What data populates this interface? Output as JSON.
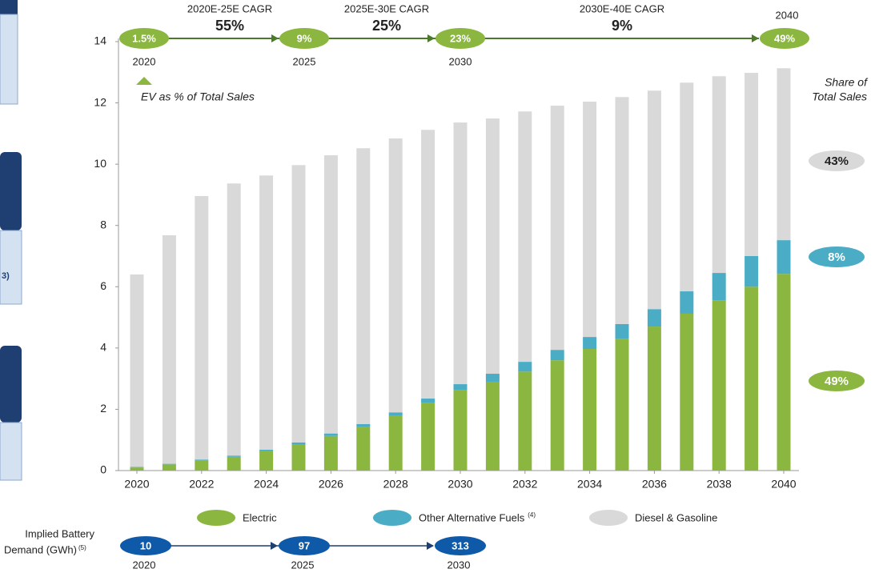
{
  "chart_data": {
    "type": "stacked_bar",
    "categories": [
      2020,
      null,
      2022,
      null,
      2024,
      null,
      2026,
      null,
      2028,
      null,
      2030,
      null,
      2032,
      null,
      2034,
      null,
      2036,
      null,
      2038,
      null,
      2040
    ],
    "series": [
      {
        "name": "Electric",
        "color": "#8bb741",
        "values": [
          0.1,
          0.2,
          0.33,
          0.45,
          0.63,
          0.85,
          1.13,
          1.42,
          1.78,
          2.2,
          2.62,
          2.9,
          3.23,
          3.6,
          3.97,
          4.3,
          4.7,
          5.12,
          5.56,
          6.0,
          6.42
        ]
      },
      {
        "name": "Other Alternative Fuels",
        "name_note": "(4)",
        "color": "#4bacc6",
        "values": [
          0.02,
          0.02,
          0.03,
          0.04,
          0.05,
          0.07,
          0.08,
          0.1,
          0.12,
          0.15,
          0.2,
          0.26,
          0.32,
          0.34,
          0.39,
          0.48,
          0.57,
          0.73,
          0.89,
          1.0,
          1.1
        ]
      },
      {
        "name": "Diesel & Gasoline",
        "color": "#d9d9d9",
        "values": [
          6.28,
          7.46,
          8.6,
          8.88,
          8.95,
          9.05,
          9.08,
          9.0,
          8.94,
          8.77,
          8.54,
          8.33,
          8.17,
          7.97,
          7.68,
          7.41,
          7.13,
          6.81,
          6.42,
          5.98,
          5.61
        ]
      }
    ],
    "ylim": [
      0,
      14
    ],
    "yticks": [
      0,
      2,
      4,
      6,
      8,
      10,
      12,
      14
    ],
    "grid": false,
    "ev_timeline": {
      "milestones": [
        {
          "label": "1.5%",
          "year": "2020"
        },
        {
          "label": "9%",
          "year": "2025"
        },
        {
          "label": "23%",
          "year": "2030"
        },
        {
          "label": "49%",
          "year": "2040"
        }
      ],
      "cagr": [
        {
          "title": "2020E-25E CAGR",
          "value": "55%"
        },
        {
          "title": "2025E-30E CAGR",
          "value": "25%"
        },
        {
          "title": "2030E-40E CAGR",
          "value": "9%"
        }
      ],
      "caption": "EV as % of Total Sales"
    },
    "share": {
      "title": [
        "Share of",
        "Total Sales"
      ],
      "labels": [
        "43%",
        "8%",
        "49%"
      ]
    },
    "battery": {
      "label": [
        "Implied Battery",
        "Demand (GWh)"
      ],
      "note": "(5)",
      "values": [
        "10",
        "97",
        "313"
      ],
      "years": [
        "2020",
        "2025",
        "2030"
      ]
    },
    "side_fragment": "3)"
  }
}
